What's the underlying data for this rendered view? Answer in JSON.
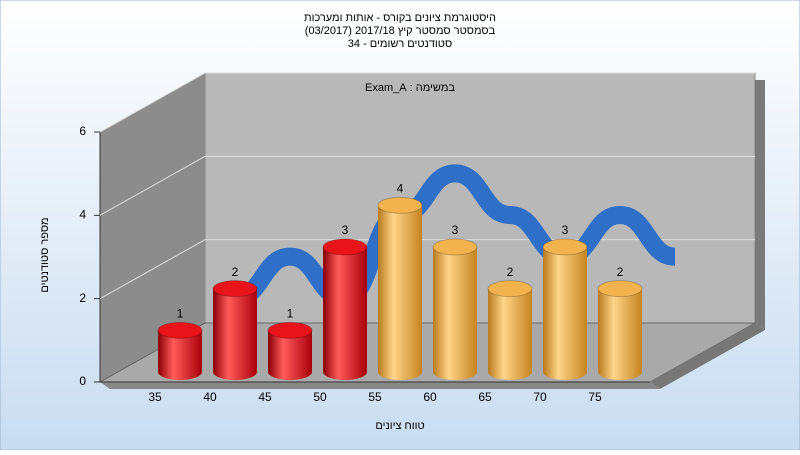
{
  "chart_data": {
    "type": "bar",
    "title": "היסטוגרמת ציונים בקורס - אותות ומערכות",
    "subtitle": "בסמסטר  סמסטר קיץ 2017/18  (03/2017)",
    "subtitle2": "סטודנטים רשומים - 34",
    "annotation": "במשימה : Exam_A",
    "xlabel": "טווח ציונים",
    "ylabel": "מספר סטודנטים",
    "categories": [
      "35",
      "40",
      "45",
      "50",
      "55",
      "60",
      "65",
      "70",
      "75"
    ],
    "values": [
      1,
      2,
      1,
      3,
      4,
      3,
      2,
      3,
      2
    ],
    "colors": [
      "#e8131b",
      "#e8131b",
      "#e8131b",
      "#e8131b",
      "#f2b24e",
      "#f2b24e",
      "#f2b24e",
      "#f2b24e",
      "#f2b24e"
    ],
    "line_color": "#2f6fc7",
    "ylim": [
      0,
      6
    ],
    "yticks": [
      0,
      2,
      4,
      6
    ],
    "grid": true
  }
}
